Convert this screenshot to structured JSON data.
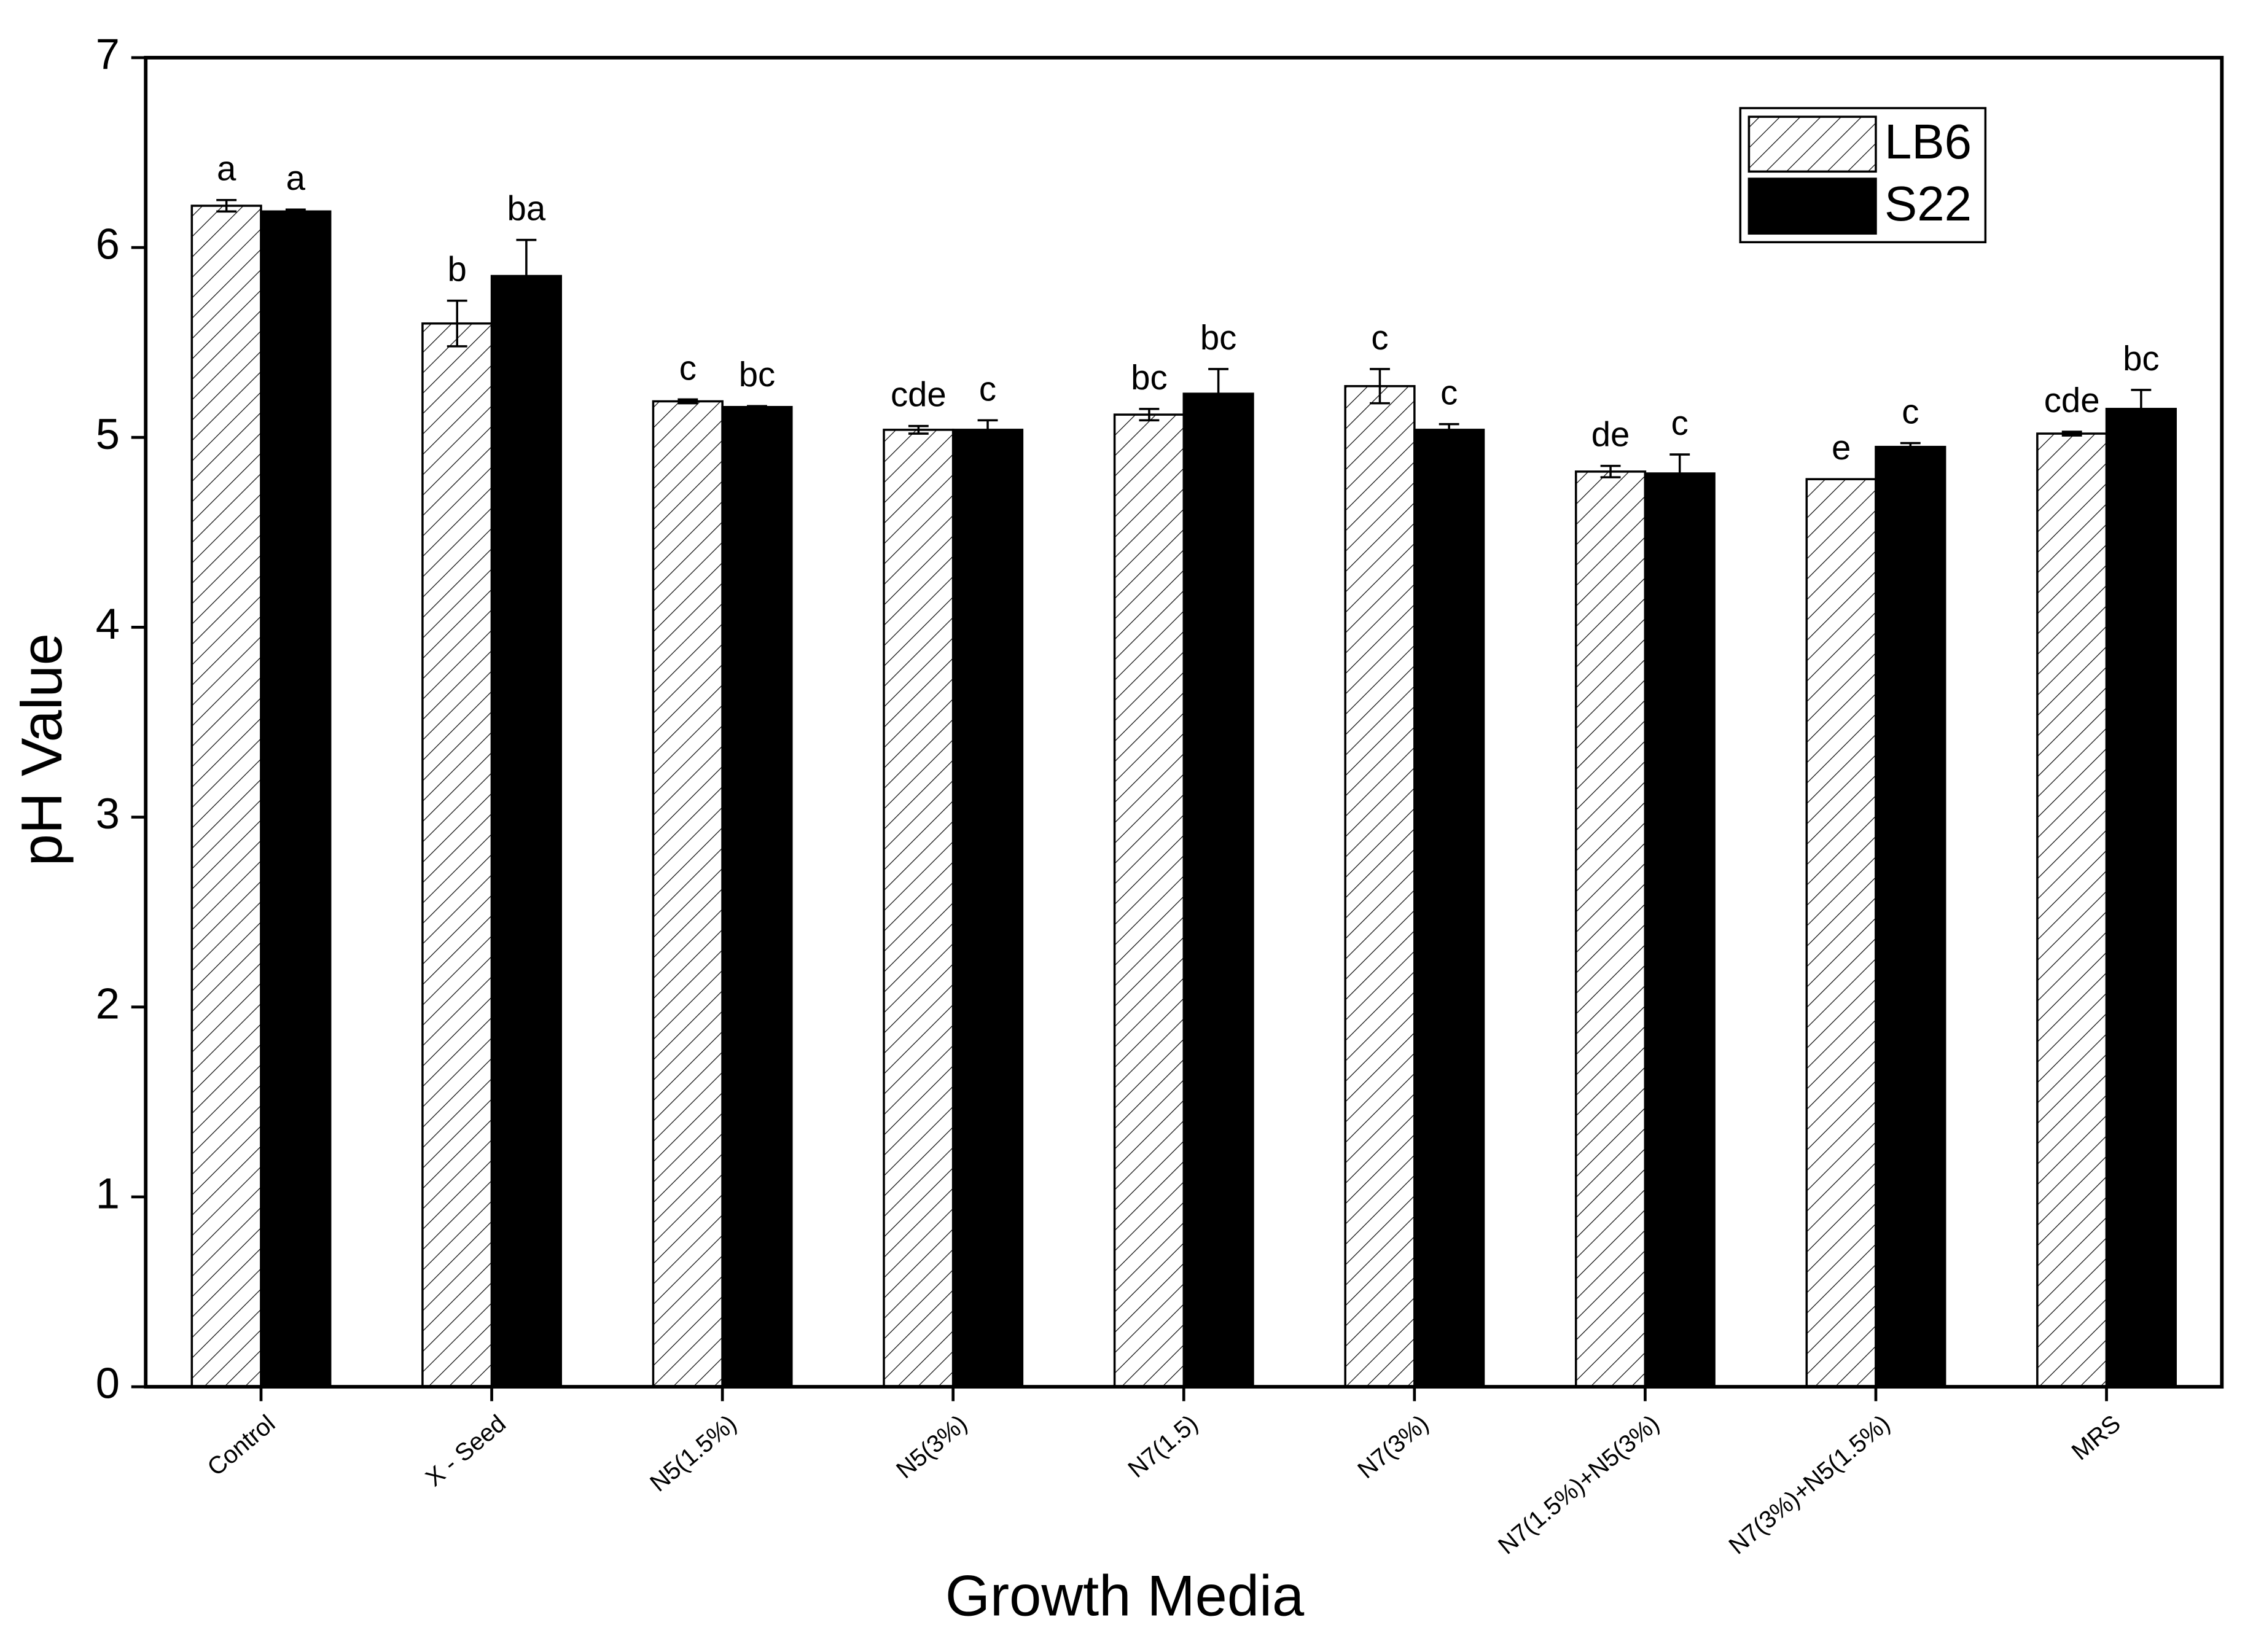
{
  "chart_data": {
    "type": "bar",
    "x_label": "Growth Media",
    "y_label": "pH Value",
    "categories": [
      "Control",
      "X - Seed",
      "N5(1.5%)",
      "N5(3%)",
      "N7(1.5)",
      "N7(3%)",
      "N7(1.5%)+N5(3%)",
      "N7(3%)+N5(1.5%)",
      "MRS"
    ],
    "series": [
      {
        "name": "LB6",
        "color": "#ffffff",
        "hatch": "diagonal",
        "values": [
          6.22,
          5.6,
          5.19,
          5.04,
          5.12,
          5.27,
          4.82,
          4.78,
          5.02
        ],
        "errors": [
          0.03,
          0.12,
          0.01,
          0.02,
          0.03,
          0.09,
          0.03,
          0,
          0.01
        ],
        "letters": [
          "a",
          "b",
          "c",
          "cde",
          "bc",
          "c",
          "de",
          "e",
          "cde"
        ]
      },
      {
        "name": "S22",
        "color": "#000000",
        "values": [
          6.19,
          5.85,
          5.16,
          5.04,
          5.23,
          5.04,
          4.81,
          4.95,
          5.15
        ],
        "errors": [
          0.01,
          0.19,
          0.005,
          0.05,
          0.13,
          0.03,
          0.1,
          0.02,
          0.1
        ],
        "letters": [
          "a",
          "ba",
          "bc",
          "c",
          "bc",
          "c",
          "c",
          "c",
          "bc"
        ]
      }
    ],
    "ylim": [
      0,
      7
    ],
    "yticks": [
      0,
      1,
      2,
      3,
      4,
      5,
      6,
      7
    ],
    "legend": "top-right"
  }
}
